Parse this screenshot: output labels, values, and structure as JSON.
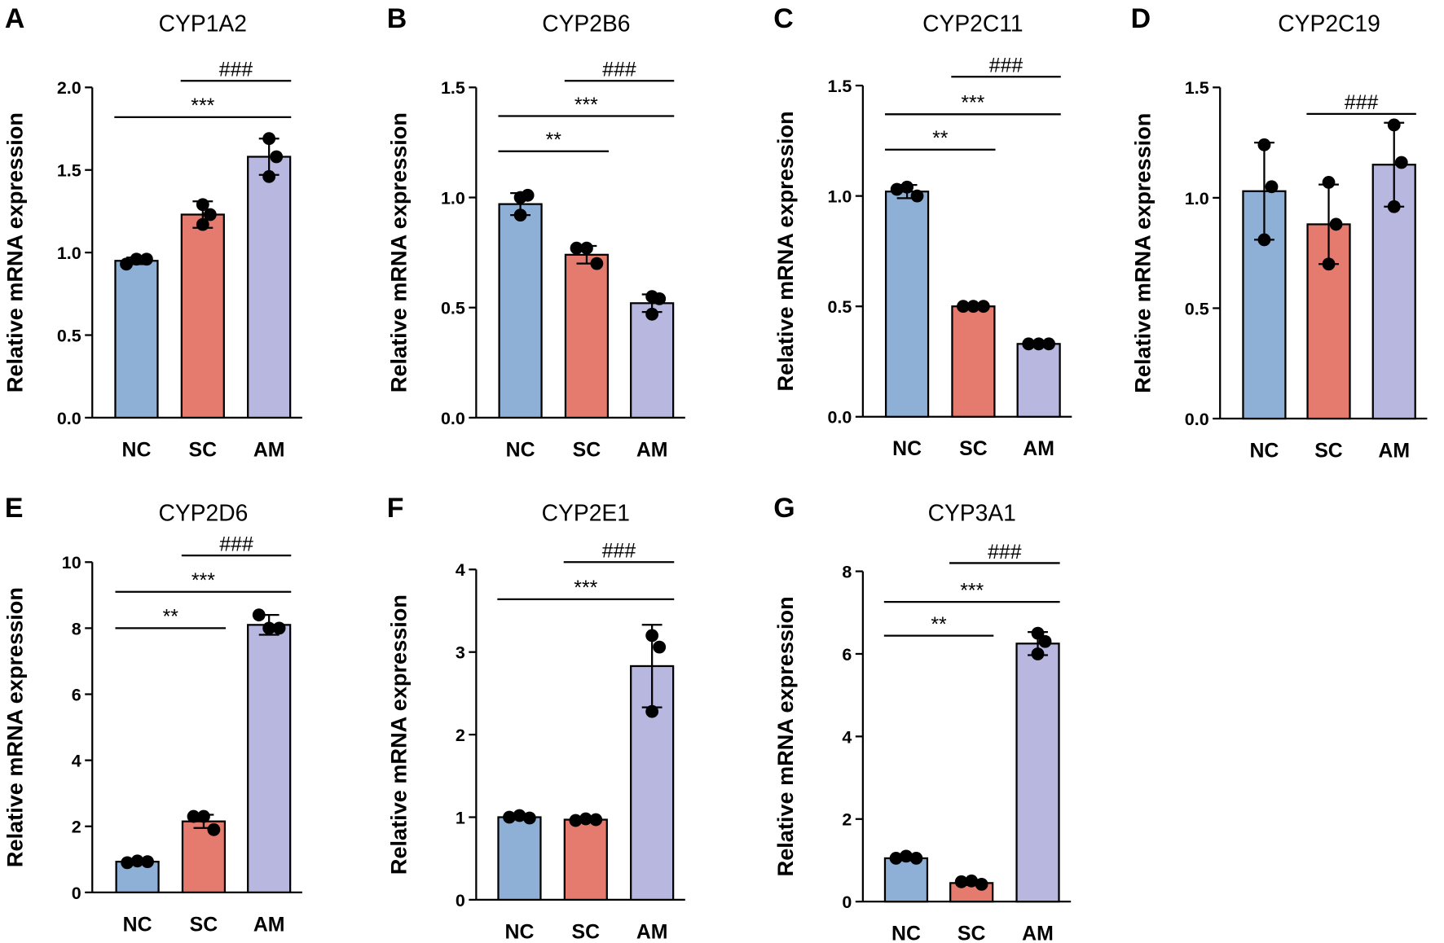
{
  "chart_data": [
    {
      "type": "bar",
      "letter": "A",
      "title": "CYP1A2",
      "ylabel": "Relative mRNA expression",
      "ylim": [
        0,
        2.0
      ],
      "yticks": [
        "0.0",
        "0.5",
        "1.0",
        "1.5",
        "2.0"
      ],
      "tickvals": [
        0,
        0.5,
        1.0,
        1.5,
        2.0
      ],
      "categories": [
        "NC",
        "SC",
        "AM"
      ],
      "values": [
        0.95,
        1.23,
        1.58
      ],
      "errors": [
        0.02,
        0.08,
        0.11
      ],
      "points": [
        [
          0.93,
          0.96,
          0.96
        ],
        [
          1.29,
          1.23,
          1.17
        ],
        [
          1.69,
          1.58,
          1.46
        ]
      ],
      "significance": [
        {
          "from": 1,
          "to": 2,
          "label": "###",
          "level": 2.04
        },
        {
          "from": 0,
          "to": 2,
          "label": "***",
          "level": 1.82
        }
      ]
    },
    {
      "type": "bar",
      "letter": "B",
      "title": "CYP2B6",
      "ylabel": "Relative mRNA expression",
      "ylim": [
        0,
        1.5
      ],
      "yticks": [
        "0.0",
        "0.5",
        "1.0",
        "1.5"
      ],
      "tickvals": [
        0,
        0.5,
        1.0,
        1.5
      ],
      "categories": [
        "NC",
        "SC",
        "AM"
      ],
      "values": [
        0.97,
        0.74,
        0.52
      ],
      "errors": [
        0.05,
        0.04,
        0.04
      ],
      "points": [
        [
          1.0,
          1.01,
          0.92
        ],
        [
          0.77,
          0.77,
          0.7
        ],
        [
          0.55,
          0.54,
          0.47
        ]
      ],
      "significance": [
        {
          "from": 1,
          "to": 2,
          "label": "###",
          "level": 1.53
        },
        {
          "from": 0,
          "to": 2,
          "label": "***",
          "level": 1.37
        },
        {
          "from": 0,
          "to": 1,
          "label": "**",
          "level": 1.21
        }
      ]
    },
    {
      "type": "bar",
      "letter": "C",
      "title": "CYP2C11",
      "ylabel": "Relative mRNA expression",
      "ylim": [
        0,
        1.5
      ],
      "yticks": [
        "0.0",
        "0.5",
        "1.0",
        "1.5"
      ],
      "tickvals": [
        0,
        0.5,
        1.0,
        1.5
      ],
      "categories": [
        "NC",
        "SC",
        "AM"
      ],
      "values": [
        1.02,
        0.5,
        0.33
      ],
      "errors": [
        0.03,
        0.01,
        0.01
      ],
      "points": [
        [
          1.03,
          1.04,
          1.0
        ],
        [
          0.5,
          0.5,
          0.5
        ],
        [
          0.33,
          0.33,
          0.33
        ]
      ],
      "significance": [
        {
          "from": 1,
          "to": 2,
          "label": "###",
          "level": 1.54
        },
        {
          "from": 0,
          "to": 2,
          "label": "***",
          "level": 1.37
        },
        {
          "from": 0,
          "to": 1,
          "label": "**",
          "level": 1.21
        }
      ]
    },
    {
      "type": "bar",
      "letter": "D",
      "title": "CYP2C19",
      "ylabel": "Relative mRNA expression",
      "ylim": [
        0,
        1.5
      ],
      "yticks": [
        "0.0",
        "0.5",
        "1.0",
        "1.5"
      ],
      "tickvals": [
        0,
        0.5,
        1.0,
        1.5
      ],
      "categories": [
        "NC",
        "SC",
        "AM"
      ],
      "values": [
        1.03,
        0.88,
        1.15
      ],
      "errors": [
        0.22,
        0.18,
        0.19
      ],
      "points": [
        [
          1.24,
          1.05,
          0.81
        ],
        [
          1.07,
          0.88,
          0.7
        ],
        [
          1.33,
          1.16,
          0.96
        ]
      ],
      "significance": [
        {
          "from": 1,
          "to": 2,
          "label": "###",
          "level": 1.38
        }
      ]
    },
    {
      "type": "bar",
      "letter": "E",
      "title": "CYP2D6",
      "ylabel": "Relative mRNA expression",
      "ylim": [
        0,
        10
      ],
      "yticks": [
        "0",
        "2",
        "4",
        "6",
        "8",
        "10"
      ],
      "tickvals": [
        0,
        2,
        4,
        6,
        8,
        10
      ],
      "categories": [
        "NC",
        "SC",
        "AM"
      ],
      "values": [
        0.93,
        2.15,
        8.1
      ],
      "errors": [
        0.05,
        0.2,
        0.3
      ],
      "points": [
        [
          0.9,
          0.95,
          0.93
        ],
        [
          2.3,
          2.3,
          1.9
        ],
        [
          8.4,
          8.0,
          8.0
        ]
      ],
      "significance": [
        {
          "from": 1,
          "to": 2,
          "label": "###",
          "level": 10.2
        },
        {
          "from": 0,
          "to": 2,
          "label": "***",
          "level": 9.1
        },
        {
          "from": 0,
          "to": 1,
          "label": "**",
          "level": 8.0
        }
      ]
    },
    {
      "type": "bar",
      "letter": "F",
      "title": "CYP2E1",
      "ylabel": "Relative mRNA expression",
      "ylim": [
        0,
        4
      ],
      "yticks": [
        "0",
        "1",
        "2",
        "3",
        "4"
      ],
      "tickvals": [
        0,
        1,
        2,
        3,
        4
      ],
      "categories": [
        "NC",
        "SC",
        "AM"
      ],
      "values": [
        1.0,
        0.97,
        2.83
      ],
      "errors": [
        0.02,
        0.02,
        0.5
      ],
      "points": [
        [
          1.0,
          1.02,
          0.99
        ],
        [
          0.96,
          0.98,
          0.97
        ],
        [
          3.2,
          3.06,
          2.28
        ]
      ],
      "significance": [
        {
          "from": 1,
          "to": 2,
          "label": "###",
          "level": 4.09
        },
        {
          "from": 0,
          "to": 2,
          "label": "***",
          "level": 3.64
        }
      ]
    },
    {
      "type": "bar",
      "letter": "G",
      "title": "CYP3A1",
      "ylabel": "Relative mRNA expression",
      "ylim": [
        0,
        8
      ],
      "yticks": [
        "0",
        "2",
        "4",
        "6",
        "8"
      ],
      "tickvals": [
        0,
        2,
        4,
        6,
        8
      ],
      "categories": [
        "NC",
        "SC",
        "AM"
      ],
      "values": [
        1.05,
        0.45,
        6.25
      ],
      "errors": [
        0.05,
        0.05,
        0.28
      ],
      "points": [
        [
          1.05,
          1.1,
          1.05
        ],
        [
          0.48,
          0.5,
          0.42
        ],
        [
          6.5,
          6.3,
          6.0
        ]
      ],
      "significance": [
        {
          "from": 1,
          "to": 2,
          "label": "###",
          "level": 8.2
        },
        {
          "from": 0,
          "to": 2,
          "label": "***",
          "level": 7.26
        },
        {
          "from": 0,
          "to": 1,
          "label": "**",
          "level": 6.44
        }
      ]
    }
  ],
  "colors": {
    "NC": "#8fb0d6",
    "SC": "#e57b6e",
    "AM": "#b7b7e0"
  }
}
